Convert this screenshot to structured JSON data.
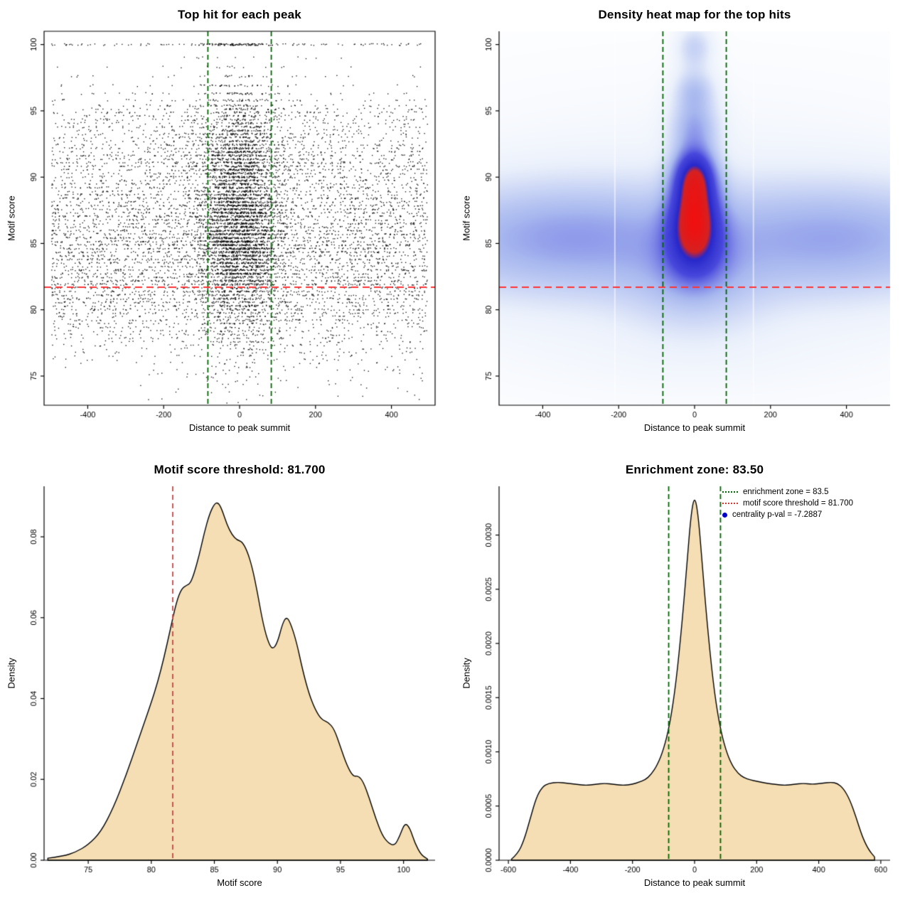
{
  "chart_data": [
    {
      "type": "scatter",
      "title": "Top hit for each peak",
      "xlabel": "Distance to peak summit",
      "ylabel": "Motif score",
      "xlim": [
        -515,
        515
      ],
      "ylim": [
        72.8,
        101
      ],
      "xticks": {
        "values": [
          -400,
          -200,
          0,
          200,
          400
        ],
        "labels": [
          "-400",
          "-200",
          "0",
          "200",
          "400"
        ]
      },
      "yticks": {
        "values": [
          75,
          80,
          85,
          90,
          95,
          100
        ],
        "labels": [
          "75",
          "80",
          "85",
          "90",
          "95",
          "100"
        ]
      },
      "point_color": "#000000",
      "threshold_line": {
        "y": 81.7,
        "color": "#FF3232"
      },
      "zone_lines": {
        "x": [
          -83.5,
          83.5
        ],
        "color": "#006400"
      },
      "points_model": {
        "seed": 7,
        "row_start": 73,
        "row_end": 95.2,
        "row_step": 0.27,
        "scale": 2800,
        "central_sd": 55,
        "central_frac_main": 0.45,
        "central_frac_low": 0.25,
        "x_range": [
          -495,
          495
        ],
        "extra_rows": [
          95.4,
          95.8,
          96.3,
          96.9,
          97.6,
          98.3,
          99.0
        ],
        "top_row": {
          "score": 100,
          "count": 190,
          "central_frac": 0.5
        }
      }
    },
    {
      "type": "heatmap",
      "title": "Density heat map for the top hits",
      "xlabel": "Distance to peak summit",
      "ylabel": "Motif score",
      "xlim": [
        -515,
        515
      ],
      "ylim": [
        72.8,
        101
      ],
      "xticks": {
        "values": [
          -400,
          -200,
          0,
          200,
          400
        ],
        "labels": [
          "-400",
          "-200",
          "0",
          "200",
          "400"
        ]
      },
      "yticks": {
        "values": [
          75,
          80,
          85,
          90,
          95,
          100
        ],
        "labels": [
          "75",
          "80",
          "85",
          "90",
          "95",
          "100"
        ]
      },
      "threshold_line": {
        "y": 81.7,
        "color": "#FF3232"
      },
      "zone_lines": {
        "x": [
          -83.5,
          83.5
        ],
        "color": "#006400"
      },
      "white_streaks_x": [
        -210,
        155
      ],
      "gamma": 0.8,
      "colormap": [
        {
          "t": 0.0,
          "c": "#FFFFFF"
        },
        {
          "t": 0.15,
          "c": "#EAF0FB"
        },
        {
          "t": 0.35,
          "c": "#A8B8EF"
        },
        {
          "t": 0.55,
          "c": "#4848DC"
        },
        {
          "t": 0.74,
          "c": "#2828CA"
        },
        {
          "t": 0.82,
          "c": "#D42222"
        },
        {
          "t": 1.0,
          "c": "#F01010"
        }
      ],
      "components": [
        {
          "a": 0.3,
          "x0": 0,
          "sx": 1200,
          "s0": 86.0,
          "ss": 2.8
        },
        {
          "a": 0.1,
          "x0": 0,
          "sx": 1200,
          "s0": 82.5,
          "ss": 2.2
        },
        {
          "a": 0.1,
          "x0": 0,
          "sx": 600,
          "s0": 87.0,
          "ss": 7.0
        },
        {
          "a": 0.06,
          "x0": 0,
          "sx": 420,
          "s0": 77.5,
          "ss": 3.2
        },
        {
          "a": 0.12,
          "x0": -350,
          "sx": 170,
          "s0": 85.5,
          "ss": 3.0
        },
        {
          "a": 0.1,
          "x0": 390,
          "sx": 160,
          "s0": 85.5,
          "ss": 3.0
        },
        {
          "a": 1.0,
          "x0": 0,
          "sx": 42,
          "s0": 87.3,
          "ss": 1.9
        },
        {
          "a": 0.85,
          "x0": 0,
          "sx": 38,
          "s0": 90.2,
          "ss": 1.4
        },
        {
          "a": 0.5,
          "x0": 0,
          "sx": 55,
          "s0": 84.5,
          "ss": 1.8
        },
        {
          "a": 0.4,
          "x0": 0,
          "sx": 45,
          "s0": 93.8,
          "ss": 1.5
        },
        {
          "a": 0.3,
          "x0": 0,
          "sx": 38,
          "s0": 96.6,
          "ss": 1.1
        },
        {
          "a": 0.28,
          "x0": 0,
          "sx": 34,
          "s0": 99.8,
          "ss": 1.2
        },
        {
          "a": 0.15,
          "x0": 0,
          "sx": 120,
          "s0": 81.0,
          "ss": 2.5
        }
      ]
    },
    {
      "type": "area",
      "title": "Motif score threshold: 81.700",
      "xlabel": "Motif score",
      "ylabel": "Density",
      "xlim": [
        71.5,
        102.5
      ],
      "ylim": [
        0,
        0.0925
      ],
      "xticks": {
        "values": [
          75,
          80,
          85,
          90,
          95,
          100
        ],
        "labels": [
          "75",
          "80",
          "85",
          "90",
          "95",
          "100"
        ]
      },
      "yticks": {
        "values": [
          0,
          0.02,
          0.04,
          0.06,
          0.08
        ],
        "labels": [
          "0.00",
          "0.02",
          "0.04",
          "0.06",
          "0.08"
        ]
      },
      "fill": "#F5DEB3",
      "stroke": "#000000",
      "threshold_line": {
        "x": 81.7,
        "color": "#C04848"
      },
      "points": [
        [
          71.8,
          0.0005
        ],
        [
          73,
          0.001
        ],
        [
          74,
          0.002
        ],
        [
          75,
          0.0038
        ],
        [
          76,
          0.007
        ],
        [
          77,
          0.013
        ],
        [
          78,
          0.021
        ],
        [
          79,
          0.03
        ],
        [
          80,
          0.039
        ],
        [
          80.5,
          0.044
        ],
        [
          81,
          0.05
        ],
        [
          81.5,
          0.057
        ],
        [
          82,
          0.064
        ],
        [
          82.4,
          0.0672
        ],
        [
          82.8,
          0.068
        ],
        [
          83.1,
          0.0685
        ],
        [
          83.4,
          0.071
        ],
        [
          83.8,
          0.0755
        ],
        [
          84.2,
          0.081
        ],
        [
          84.6,
          0.0855
        ],
        [
          85,
          0.0882
        ],
        [
          85.3,
          0.0885
        ],
        [
          85.6,
          0.0868
        ],
        [
          86,
          0.083
        ],
        [
          86.4,
          0.0805
        ],
        [
          86.8,
          0.0792
        ],
        [
          87.2,
          0.0788
        ],
        [
          87.6,
          0.0765
        ],
        [
          88,
          0.0725
        ],
        [
          88.4,
          0.0665
        ],
        [
          88.8,
          0.0595
        ],
        [
          89.2,
          0.0545
        ],
        [
          89.6,
          0.052
        ],
        [
          90,
          0.0538
        ],
        [
          90.4,
          0.0585
        ],
        [
          90.7,
          0.0602
        ],
        [
          91,
          0.059
        ],
        [
          91.5,
          0.0542
        ],
        [
          92,
          0.047
        ],
        [
          92.5,
          0.0412
        ],
        [
          93,
          0.0372
        ],
        [
          93.5,
          0.0348
        ],
        [
          94,
          0.0342
        ],
        [
          94.5,
          0.0325
        ],
        [
          95,
          0.028
        ],
        [
          95.5,
          0.0235
        ],
        [
          96,
          0.0207
        ],
        [
          96.4,
          0.0209
        ],
        [
          96.8,
          0.0195
        ],
        [
          97.3,
          0.0152
        ],
        [
          97.8,
          0.0103
        ],
        [
          98.3,
          0.0062
        ],
        [
          98.8,
          0.0042
        ],
        [
          99.3,
          0.0036
        ],
        [
          99.7,
          0.006
        ],
        [
          100.1,
          0.0093
        ],
        [
          100.5,
          0.008
        ],
        [
          100.9,
          0.0042
        ],
        [
          101.4,
          0.0013
        ],
        [
          101.9,
          0.0003
        ]
      ]
    },
    {
      "type": "area",
      "title": "Enrichment zone: 83.50",
      "xlabel": "Distance to peak summit",
      "ylabel": "Density",
      "xlim": [
        -630,
        630
      ],
      "ylim": [
        0,
        0.00345
      ],
      "xticks": {
        "values": [
          -600,
          -400,
          -200,
          0,
          200,
          400,
          600
        ],
        "labels": [
          "-600",
          "-400",
          "-200",
          "0",
          "200",
          "400",
          "600"
        ]
      },
      "yticks": {
        "values": [
          0,
          0.0005,
          0.001,
          0.0015,
          0.002,
          0.0025,
          0.003
        ],
        "labels": [
          "0.0000",
          "0.0005",
          "0.0010",
          "0.0015",
          "0.0020",
          "0.0025",
          "0.0030"
        ]
      },
      "fill": "#F5DEB3",
      "stroke": "#000000",
      "zone_lines": {
        "x": [
          -83.5,
          83.5
        ],
        "color": "#006400"
      },
      "legend": {
        "items": [
          {
            "label": "enrichment zone = 83.5",
            "swatch": "dotted-line",
            "color": "#006400"
          },
          {
            "label": "motif score threshold = 81.700",
            "swatch": "dotted-line",
            "color": "#E03131"
          },
          {
            "label": "centrality p-val = -7.2887",
            "swatch": "dot",
            "color": "#0000CD"
          }
        ]
      },
      "points": [
        [
          -590,
          1e-05
        ],
        [
          -570,
          6e-05
        ],
        [
          -550,
          0.00018
        ],
        [
          -530,
          0.00038
        ],
        [
          -510,
          0.00058
        ],
        [
          -490,
          0.00068
        ],
        [
          -470,
          0.00071
        ],
        [
          -440,
          0.00072
        ],
        [
          -410,
          0.00071
        ],
        [
          -380,
          0.0007
        ],
        [
          -350,
          0.00069
        ],
        [
          -320,
          0.0007
        ],
        [
          -290,
          0.00071
        ],
        [
          -260,
          0.0007
        ],
        [
          -230,
          0.00069
        ],
        [
          -200,
          0.0007
        ],
        [
          -180,
          0.00072
        ],
        [
          -160,
          0.00074
        ],
        [
          -140,
          0.00079
        ],
        [
          -120,
          0.00088
        ],
        [
          -100,
          0.00102
        ],
        [
          -80,
          0.00125
        ],
        [
          -60,
          0.00163
        ],
        [
          -40,
          0.0022
        ],
        [
          -25,
          0.00272
        ],
        [
          -12,
          0.00318
        ],
        [
          0,
          0.00337
        ],
        [
          12,
          0.00318
        ],
        [
          25,
          0.00272
        ],
        [
          40,
          0.0022
        ],
        [
          60,
          0.00163
        ],
        [
          80,
          0.00125
        ],
        [
          100,
          0.00102
        ],
        [
          120,
          0.00088
        ],
        [
          140,
          0.0008
        ],
        [
          160,
          0.00076
        ],
        [
          180,
          0.00074
        ],
        [
          200,
          0.00073
        ],
        [
          230,
          0.00071
        ],
        [
          260,
          0.0007
        ],
        [
          290,
          0.00069
        ],
        [
          320,
          0.0007
        ],
        [
          350,
          0.00071
        ],
        [
          380,
          0.0007
        ],
        [
          410,
          0.00071
        ],
        [
          440,
          0.00072
        ],
        [
          460,
          0.00071
        ],
        [
          480,
          0.00066
        ],
        [
          500,
          0.00056
        ],
        [
          520,
          0.0004
        ],
        [
          540,
          0.00022
        ],
        [
          560,
          0.0001
        ],
        [
          580,
          3e-05
        ]
      ]
    }
  ]
}
